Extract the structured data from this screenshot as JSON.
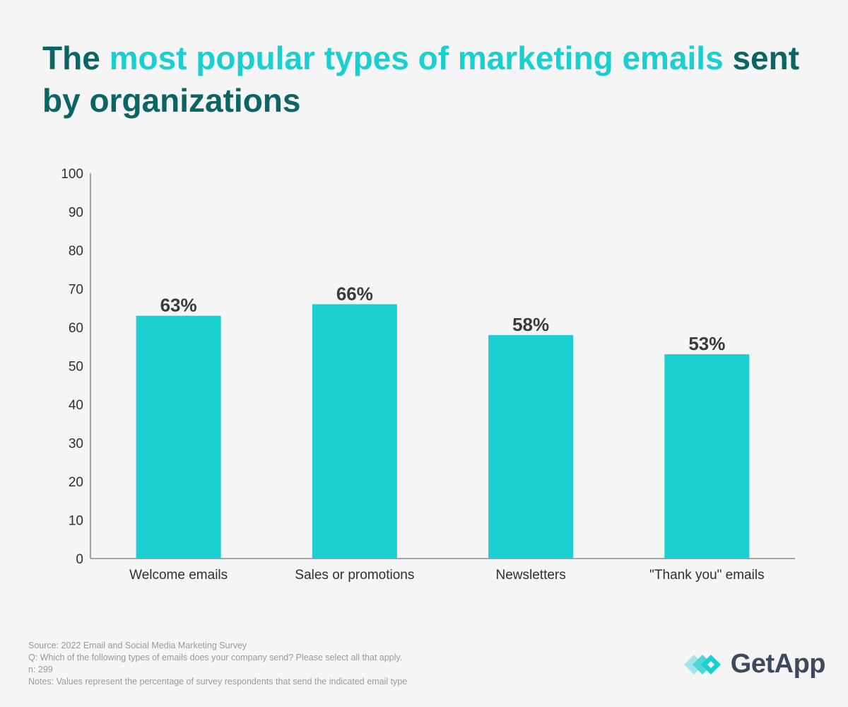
{
  "title": {
    "part1": "The ",
    "highlight": "most popular types of marketing emails",
    "part2": " sent by organizations"
  },
  "colors": {
    "bar": "#19cfcf",
    "title_dark": "#0b6565",
    "title_accent": "#19cfcf"
  },
  "chart_data": {
    "type": "bar",
    "title": "The most popular types of marketing emails sent by organizations",
    "categories": [
      "Welcome emails",
      "Sales or promotions",
      "Newsletters",
      "\"Thank you\" emails"
    ],
    "values": [
      63,
      66,
      58,
      53
    ],
    "value_labels": [
      "63%",
      "66%",
      "58%",
      "53%"
    ],
    "xlabel": "",
    "ylabel": "",
    "ylim": [
      0,
      100
    ],
    "yticks": [
      0,
      10,
      20,
      30,
      40,
      50,
      60,
      70,
      80,
      90,
      100
    ],
    "grid": false,
    "legend": "none"
  },
  "footer": {
    "source": "Source: 2022 Email and Social Media Marketing Survey",
    "question": "Q: Which of the following types of emails does your company send? Please select all that apply.",
    "n": "n: 299",
    "notes": "Notes: Values represent the percentage of survey respondents that send the indicated email type"
  },
  "logo": {
    "text": "GetApp",
    "icon": "getapp-logo-icon"
  }
}
